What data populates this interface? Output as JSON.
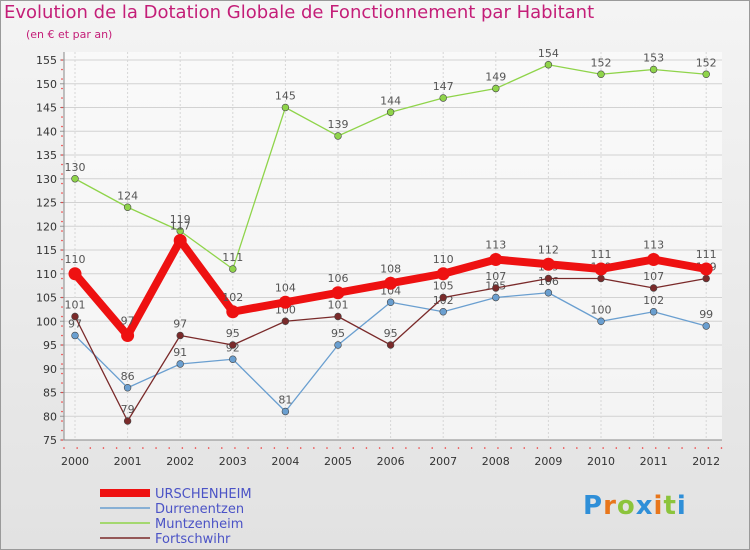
{
  "header": {
    "title": "Evolution de la Dotation Globale de Fonctionnement par Habitant",
    "subtitle": "(en € et par an)"
  },
  "logo": {
    "text": "Proxiti",
    "letters": [
      "P",
      "r",
      "o",
      "x",
      "i",
      "t",
      "i"
    ],
    "colors": [
      "#2f8fd8",
      "#e8761b",
      "#8cc43c",
      "#2f8fd8",
      "#e8761b",
      "#8cc43c",
      "#2f8fd8"
    ]
  },
  "chart_data": {
    "type": "line",
    "title": "Evolution de la Dotation Globale de Fonctionnement par Habitant",
    "ylabel": "(en € et par an)",
    "xlabel": "",
    "x": [
      "2000",
      "2001",
      "2002",
      "2003",
      "2004",
      "2005",
      "2006",
      "2007",
      "2008",
      "2009",
      "2010",
      "2011",
      "2012"
    ],
    "ylim": [
      75,
      155
    ],
    "yticks": [
      75,
      80,
      85,
      90,
      95,
      100,
      105,
      110,
      115,
      120,
      125,
      130,
      135,
      140,
      145,
      150,
      155
    ],
    "grid": true,
    "legend_position": "bottom-left",
    "series": [
      {
        "name": "URSCHENHEIM",
        "color": "#ee1111",
        "values": [
          110,
          97,
          117,
          102,
          104,
          106,
          108,
          110,
          113,
          112,
          111,
          113,
          111
        ]
      },
      {
        "name": "Durrenentzen",
        "color": "#6a9fd0",
        "values": [
          97,
          86,
          91,
          92,
          81,
          95,
          104,
          102,
          105,
          106,
          100,
          102,
          99
        ]
      },
      {
        "name": "Muntzenheim",
        "color": "#8fd44a",
        "values": [
          130,
          124,
          119,
          111,
          145,
          139,
          144,
          147,
          149,
          154,
          152,
          153,
          152
        ]
      },
      {
        "name": "Fortschwihr",
        "color": "#7a2a2a",
        "values": [
          101,
          79,
          97,
          95,
          100,
          101,
          95,
          105,
          107,
          109,
          109,
          107,
          109
        ]
      }
    ]
  }
}
